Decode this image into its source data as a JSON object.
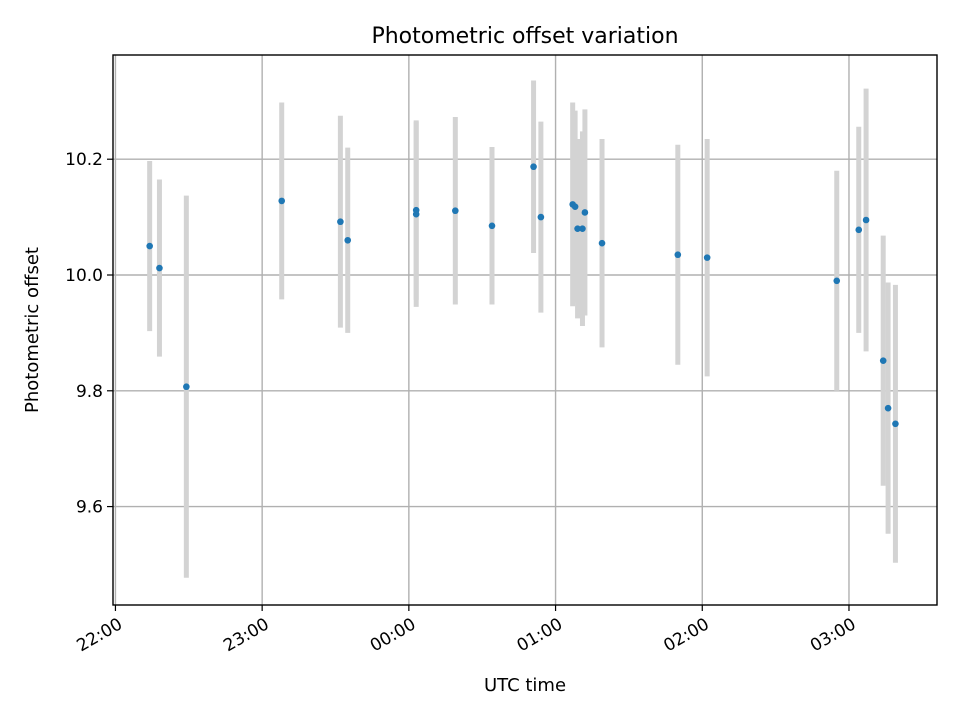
{
  "chart_data": {
    "type": "scatter",
    "title": "Photometric offset variation",
    "xlabel": "UTC time",
    "ylabel": "Photometric offset",
    "xlim": [
      "21:59",
      "03:36"
    ],
    "ylim": [
      9.43,
      10.38
    ],
    "grid": true,
    "x_ticks": [
      "22:00",
      "23:00",
      "00:00",
      "01:00",
      "02:00",
      "03:00"
    ],
    "y_ticks": [
      "9.6",
      "9.8",
      "10.0",
      "10.2"
    ],
    "colors": {
      "points": "#1f77b4",
      "error_bars": "#d3d3d3",
      "grid": "#b0b0b0"
    },
    "series": [
      {
        "points": [
          {
            "x": "22:14",
            "y": 10.05,
            "err": 0.147
          },
          {
            "x": "22:18",
            "y": 10.012,
            "err": 0.153
          },
          {
            "x": "22:29",
            "y": 9.807,
            "err": 0.33
          },
          {
            "x": "23:08",
            "y": 10.128,
            "err": 0.17
          },
          {
            "x": "23:32",
            "y": 10.092,
            "err": 0.183
          },
          {
            "x": "23:35",
            "y": 10.06,
            "err": 0.16
          },
          {
            "x": "00:03",
            "y": 10.112,
            "err": 0.155
          },
          {
            "x": "00:03",
            "y": 10.105,
            "err": 0.16
          },
          {
            "x": "00:19",
            "y": 10.111,
            "err": 0.162
          },
          {
            "x": "00:34",
            "y": 10.085,
            "err": 0.136
          },
          {
            "x": "00:51",
            "y": 10.187,
            "err": 0.149
          },
          {
            "x": "00:54",
            "y": 10.1,
            "err": 0.165
          },
          {
            "x": "01:07",
            "y": 10.122,
            "err": 0.176
          },
          {
            "x": "01:08",
            "y": 10.118,
            "err": 0.166
          },
          {
            "x": "01:09",
            "y": 10.08,
            "err": 0.155
          },
          {
            "x": "01:11",
            "y": 10.08,
            "err": 0.168
          },
          {
            "x": "01:12",
            "y": 10.108,
            "err": 0.178
          },
          {
            "x": "01:19",
            "y": 10.055,
            "err": 0.18
          },
          {
            "x": "01:50",
            "y": 10.035,
            "err": 0.19
          },
          {
            "x": "02:02",
            "y": 10.03,
            "err": 0.205
          },
          {
            "x": "02:55",
            "y": 9.99,
            "err": 0.19
          },
          {
            "x": "03:04",
            "y": 10.078,
            "err": 0.178
          },
          {
            "x": "03:07",
            "y": 10.095,
            "err": 0.227
          },
          {
            "x": "03:14",
            "y": 9.852,
            "err": 0.216
          },
          {
            "x": "03:16",
            "y": 9.77,
            "err": 0.217
          },
          {
            "x": "03:19",
            "y": 9.743,
            "err": 0.24
          }
        ]
      }
    ]
  }
}
